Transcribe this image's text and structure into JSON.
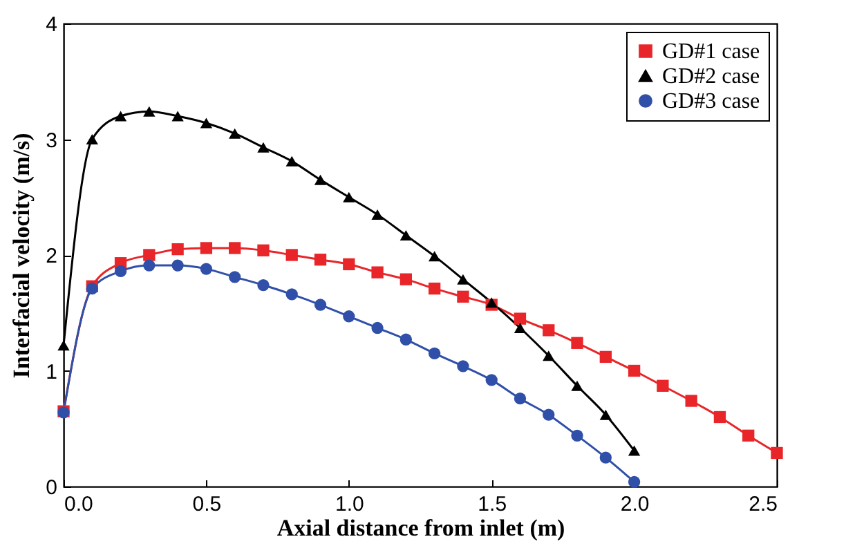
{
  "chart_data": {
    "type": "line",
    "xlabel": "Axial distance from inlet (m)",
    "ylabel": "Interfacial velocity (m/s)",
    "xlim": [
      0,
      2.5
    ],
    "ylim": [
      0,
      4
    ],
    "xticks": [
      {
        "value": 0,
        "label": "0.0"
      },
      {
        "value": 0.5,
        "label": "0.5"
      },
      {
        "value": 1,
        "label": "1.0"
      },
      {
        "value": 1.5,
        "label": "1.5"
      },
      {
        "value": 2,
        "label": "2.0"
      },
      {
        "value": 2.5,
        "label": "2.5"
      }
    ],
    "yticks": [
      0,
      1,
      2,
      3,
      4
    ],
    "grid": false,
    "legend": "top right",
    "series": [
      {
        "name": "GD#1 case",
        "color": "#e8262a",
        "marker": "square",
        "x": [
          0,
          0.1,
          0.2,
          0.3,
          0.4,
          0.5,
          0.6,
          0.7,
          0.8,
          0.9,
          1.0,
          1.1,
          1.2,
          1.3,
          1.4,
          1.5,
          1.6,
          1.7,
          1.8,
          1.9,
          2.0,
          2.1,
          2.2,
          2.3,
          2.4,
          2.5
        ],
        "values": [
          0.65,
          1.73,
          1.93,
          2.0,
          2.05,
          2.06,
          2.06,
          2.04,
          2.0,
          1.96,
          1.92,
          1.85,
          1.79,
          1.71,
          1.64,
          1.57,
          1.45,
          1.35,
          1.24,
          1.12,
          1.0,
          0.87,
          0.74,
          0.6,
          0.44,
          0.29
        ]
      },
      {
        "name": "GD#2 case",
        "color": "#000000",
        "marker": "triangle",
        "x": [
          0,
          0.1,
          0.2,
          0.3,
          0.4,
          0.5,
          0.6,
          0.7,
          0.8,
          0.9,
          1.0,
          1.1,
          1.2,
          1.3,
          1.4,
          1.5,
          1.6,
          1.7,
          1.8,
          1.9,
          2.0
        ],
        "values": [
          1.22,
          3.0,
          3.2,
          3.24,
          3.2,
          3.14,
          3.05,
          2.93,
          2.81,
          2.65,
          2.5,
          2.35,
          2.17,
          1.99,
          1.79,
          1.59,
          1.37,
          1.13,
          0.87,
          0.62,
          0.31
        ]
      },
      {
        "name": "GD#3 case",
        "color": "#2f4fa8",
        "marker": "circle",
        "x": [
          0,
          0.1,
          0.2,
          0.3,
          0.4,
          0.5,
          0.6,
          0.7,
          0.8,
          0.9,
          1.0,
          1.1,
          1.2,
          1.3,
          1.4,
          1.5,
          1.6,
          1.7,
          1.8,
          1.9,
          2.0
        ],
        "values": [
          0.64,
          1.71,
          1.86,
          1.91,
          1.91,
          1.88,
          1.81,
          1.74,
          1.66,
          1.57,
          1.47,
          1.37,
          1.27,
          1.15,
          1.04,
          0.92,
          0.76,
          0.62,
          0.44,
          0.25,
          0.04
        ]
      }
    ]
  }
}
